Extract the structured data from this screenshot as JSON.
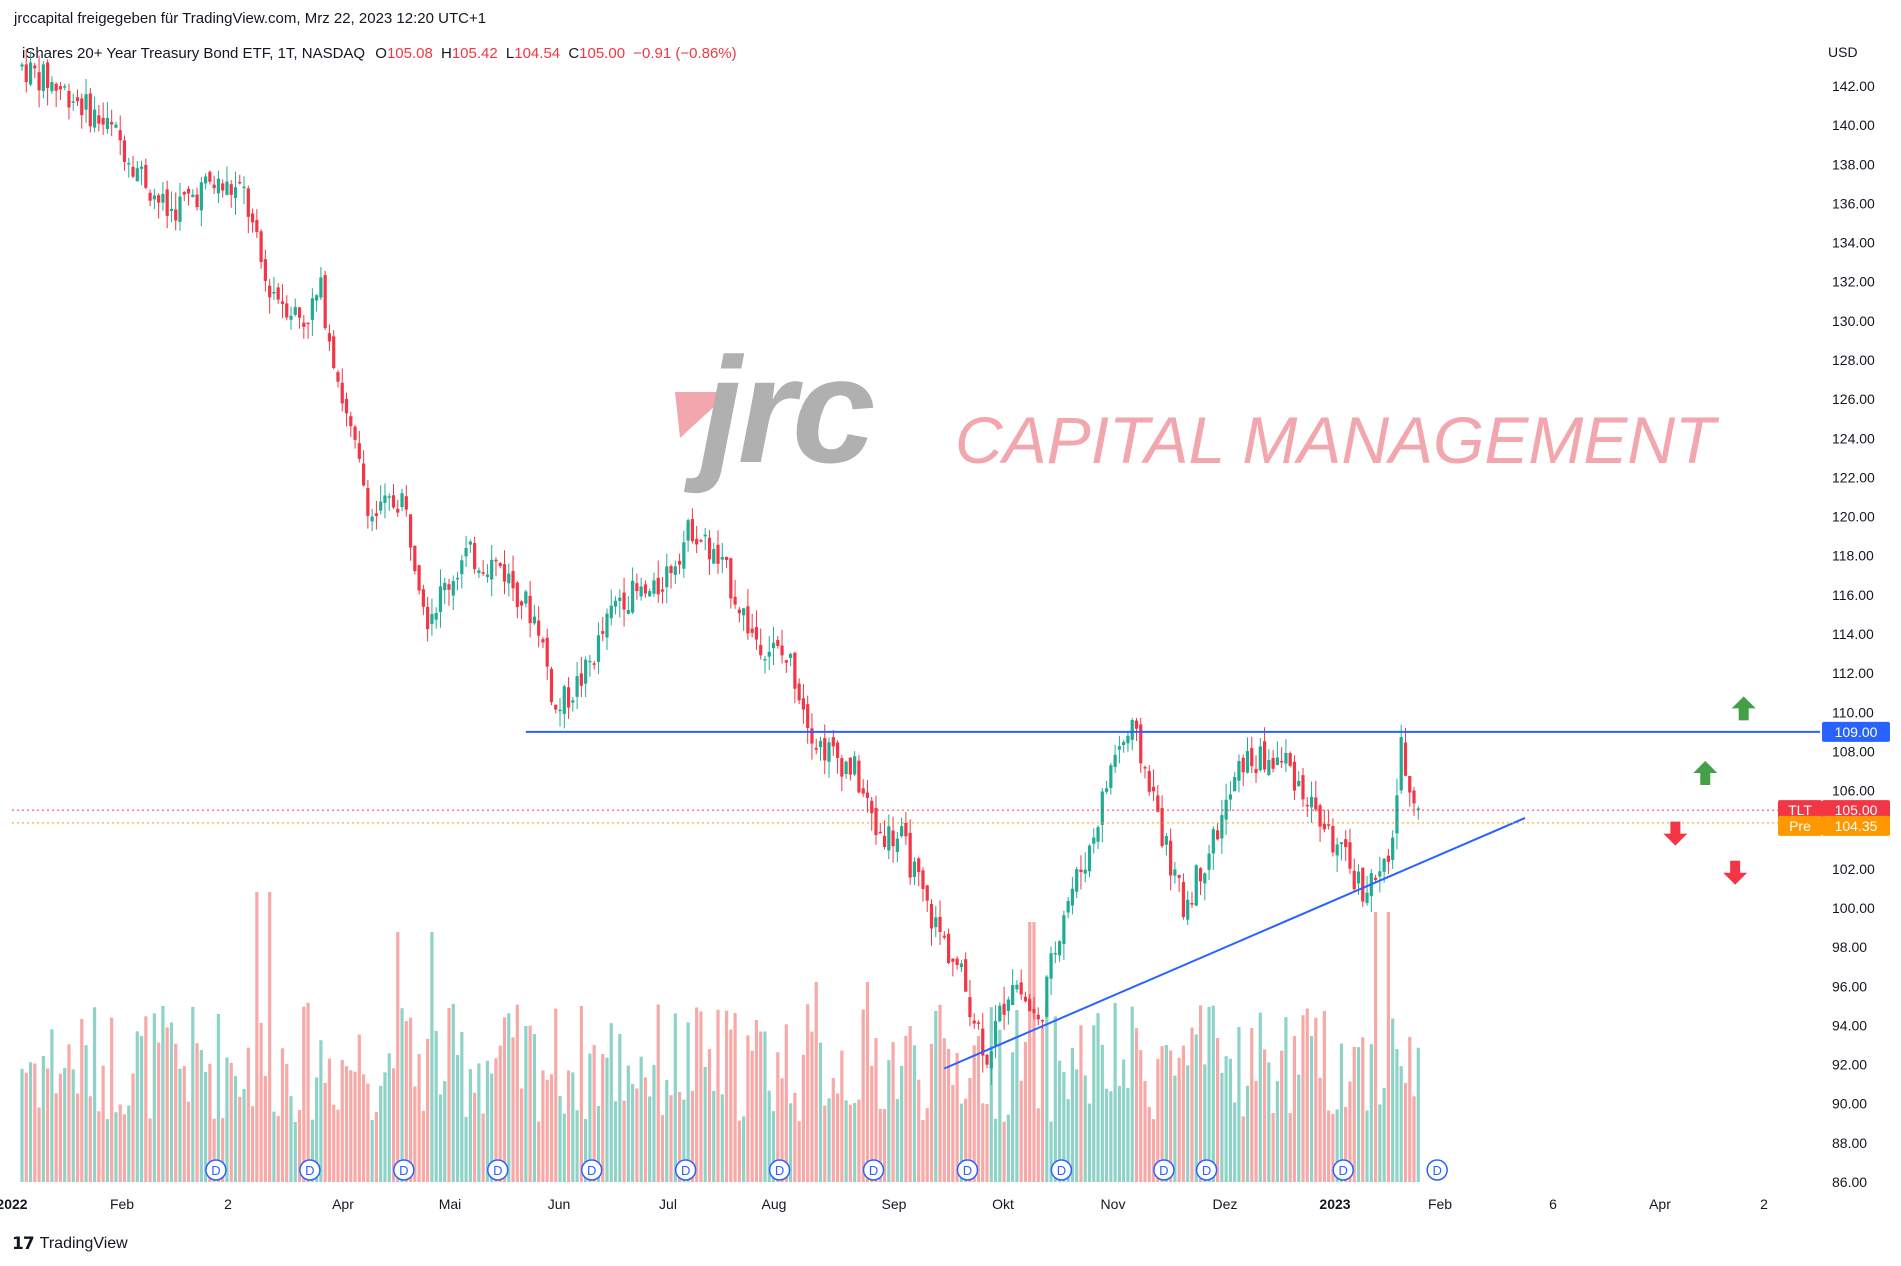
{
  "header": {
    "publisher_line": "jrccapital freigegeben für TradingView.com, Mrz 22, 2023 12:20 UTC+1"
  },
  "legend": {
    "title": "iShares 20+ Year Treasury Bond ETF, 1T, NASDAQ",
    "o_label": "O",
    "o_value": "105.08",
    "h_label": "H",
    "h_value": "105.42",
    "l_label": "L",
    "l_value": "104.54",
    "c_label": "C",
    "c_value": "105.00",
    "change": "−0.91 (−0.86%)"
  },
  "currency": "USD",
  "watermark": {
    "logo_text": "jrc",
    "tagline": "CAPITAL MANAGEMENT",
    "logo_color": "#b0b0b0",
    "tagline_color": "#f2a6ad"
  },
  "footer": {
    "brand": "TradingView"
  },
  "colors": {
    "up": "#22ab94",
    "down": "#f23645",
    "volume_up": "#8fd3c8",
    "volume_down": "#f7a9a7",
    "trendline": "#2962ff",
    "price_tag": "#f23645",
    "pre_tag": "#ff9800",
    "resistance_tag": "#2962ff",
    "arrow_up": "#43a047",
    "arrow_down": "#f23645",
    "dividend_marker": "#2962ff"
  },
  "chart_data": {
    "type": "candlestick",
    "symbol": "TLT",
    "interval": "1T",
    "exchange": "NASDAQ",
    "ylim": [
      86,
      143
    ],
    "y_ticks": [
      "142.00",
      "140.00",
      "138.00",
      "136.00",
      "134.00",
      "132.00",
      "130.00",
      "128.00",
      "126.00",
      "124.00",
      "122.00",
      "120.00",
      "118.00",
      "116.00",
      "114.00",
      "112.00",
      "110.00",
      "108.00",
      "106.00",
      "102.00",
      "100.00",
      "98.00",
      "96.00",
      "94.00",
      "92.00",
      "90.00",
      "88.00",
      "86.00"
    ],
    "x_ticks": [
      "2022",
      "Feb",
      "2",
      "Apr",
      "Mai",
      "Jun",
      "Jul",
      "Aug",
      "Sep",
      "Okt",
      "Nov",
      "Dez",
      "2023",
      "Feb",
      "6",
      "Apr",
      "2"
    ],
    "anchors": [
      {
        "t": 0,
        "price": 143.0
      },
      {
        "t": 12,
        "price": 141.5
      },
      {
        "t": 22,
        "price": 139.5
      },
      {
        "t": 34,
        "price": 135.5
      },
      {
        "t": 44,
        "price": 137.0
      },
      {
        "t": 52,
        "price": 136.5
      },
      {
        "t": 57,
        "price": 132.0
      },
      {
        "t": 66,
        "price": 130.0
      },
      {
        "t": 70,
        "price": 131.5
      },
      {
        "t": 76,
        "price": 125.0
      },
      {
        "t": 82,
        "price": 120.0
      },
      {
        "t": 89,
        "price": 121.0
      },
      {
        "t": 95,
        "price": 115.0
      },
      {
        "t": 104,
        "price": 118.0
      },
      {
        "t": 112,
        "price": 117.5
      },
      {
        "t": 121,
        "price": 114.5
      },
      {
        "t": 125,
        "price": 110.0
      },
      {
        "t": 132,
        "price": 112.0
      },
      {
        "t": 140,
        "price": 116.0
      },
      {
        "t": 148,
        "price": 116.0
      },
      {
        "t": 157,
        "price": 119.5
      },
      {
        "t": 165,
        "price": 117.0
      },
      {
        "t": 171,
        "price": 114.0
      },
      {
        "t": 180,
        "price": 112.5
      },
      {
        "t": 186,
        "price": 108.5
      },
      {
        "t": 195,
        "price": 107.0
      },
      {
        "t": 200,
        "price": 104.0
      },
      {
        "t": 206,
        "price": 103.5
      },
      {
        "t": 212,
        "price": 100.0
      },
      {
        "t": 220,
        "price": 96.5
      },
      {
        "t": 226,
        "price": 92.5
      },
      {
        "t": 232,
        "price": 96.5
      },
      {
        "t": 238,
        "price": 94.0
      },
      {
        "t": 244,
        "price": 100.0
      },
      {
        "t": 250,
        "price": 103.0
      },
      {
        "t": 256,
        "price": 108.0
      },
      {
        "t": 260,
        "price": 109.0
      },
      {
        "t": 264,
        "price": 106.5
      },
      {
        "t": 268,
        "price": 103.0
      },
      {
        "t": 272,
        "price": 100.0
      },
      {
        "t": 280,
        "price": 104.0
      },
      {
        "t": 286,
        "price": 107.5
      },
      {
        "t": 296,
        "price": 107.5
      },
      {
        "t": 300,
        "price": 106.0
      },
      {
        "t": 308,
        "price": 103.0
      },
      {
        "t": 314,
        "price": 101.0
      },
      {
        "t": 320,
        "price": 102.0
      },
      {
        "t": 323,
        "price": 108.0
      },
      {
        "t": 327,
        "price": 105.0
      }
    ],
    "volume_max_label": "relative",
    "dividend_markers": [
      "D",
      "D",
      "D",
      "D",
      "D",
      "D",
      "D",
      "D",
      "D",
      "D",
      "D",
      "D",
      "D",
      "D"
    ],
    "dividend_t": [
      22,
      44,
      66,
      88,
      110,
      132,
      154,
      176,
      198,
      220,
      244,
      254,
      286,
      308
    ],
    "resistance_level": 109.0,
    "resistance_label": "109.00",
    "resistance_start_t": 118,
    "trendline": {
      "t1": 216,
      "p1": 91.8,
      "t2": 352,
      "p2": 104.6
    },
    "last_price": 105.0,
    "last_price_label": "105.00",
    "last_tag": "TLT",
    "pre_price": 104.35,
    "pre_price_label": "104.35",
    "pre_tag": "Pre",
    "arrows": [
      {
        "dir": "up",
        "t": 347,
        "price": 110.2
      },
      {
        "dir": "up",
        "t": 338,
        "price": 106.9
      },
      {
        "dir": "down",
        "t": 331,
        "price": 103.8
      },
      {
        "dir": "down",
        "t": 345,
        "price": 101.8
      }
    ]
  }
}
